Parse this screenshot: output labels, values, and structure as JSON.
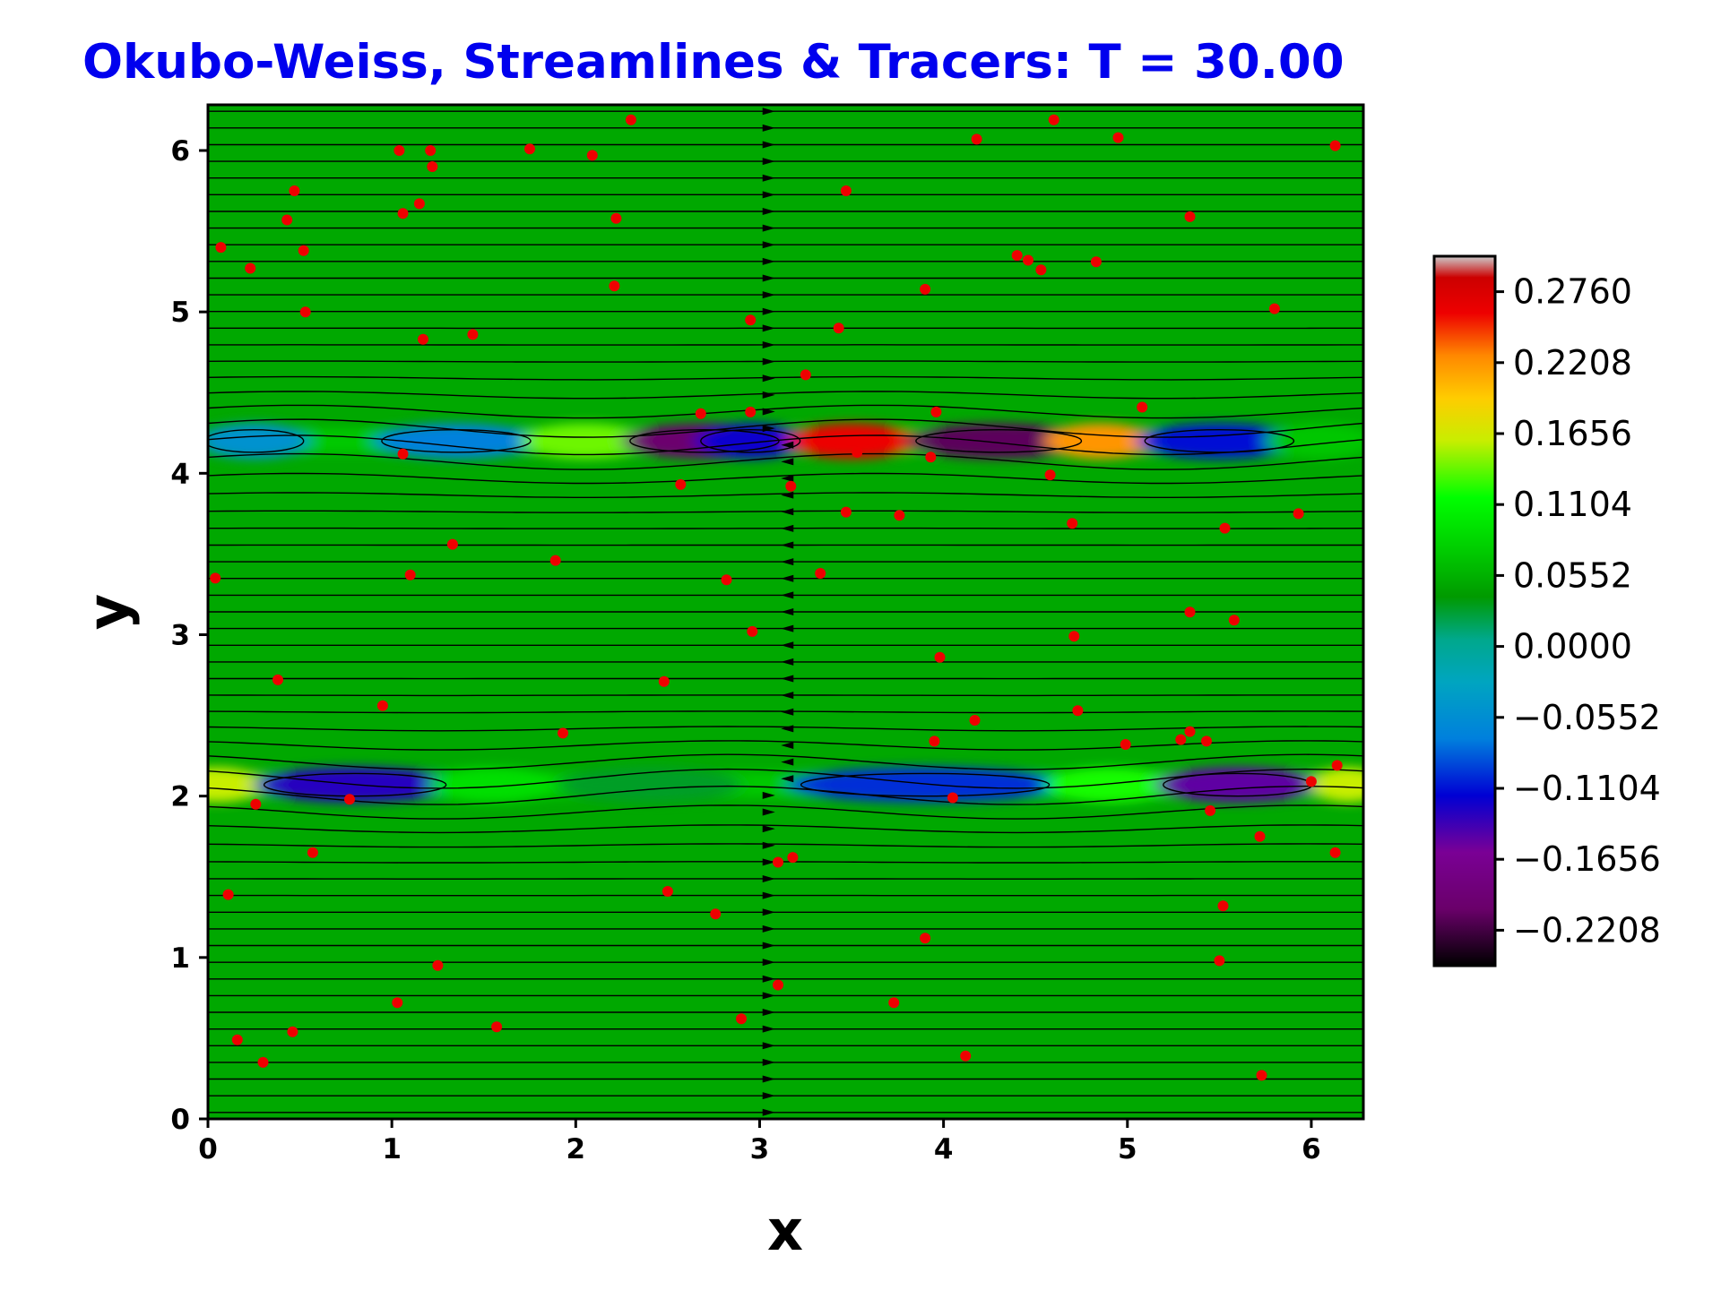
{
  "chart_data": {
    "type": "heatmap",
    "title": "Okubo-Weiss, Streamlines & Tracers: T = 30.00",
    "xlabel": "x",
    "ylabel": "y",
    "xlim": [
      0,
      6.283
    ],
    "ylim": [
      0,
      6.283
    ],
    "x_ticks": [
      "0",
      "1",
      "2",
      "3",
      "4",
      "5",
      "6"
    ],
    "y_ticks": [
      "0",
      "1",
      "2",
      "3",
      "4",
      "5",
      "6"
    ],
    "grid": false,
    "colors": {
      "title": "#0000ee",
      "background_field": "#00a800",
      "tracer": "#ee0000",
      "streamline": "#000000"
    },
    "colorbar": {
      "range": [
        -0.2484,
        0.3036
      ],
      "tick_labels": [
        "0.2760",
        "0.2208",
        "0.1656",
        "0.1104",
        "0.0552",
        "0.0000",
        "−0.0552",
        "−0.1104",
        "−0.1656",
        "−0.2208"
      ],
      "tick_values": [
        0.276,
        0.2208,
        0.1656,
        0.1104,
        0.0552,
        0.0,
        -0.0552,
        -0.1104,
        -0.1656,
        -0.2208
      ],
      "colormap": "nipy_spectral"
    },
    "shear_layers": [
      {
        "y": 4.2,
        "features": [
          {
            "x": 0.25,
            "w": 0.3,
            "value": -0.05
          },
          {
            "x": 1.35,
            "w": 0.45,
            "value": -0.07
          },
          {
            "x": 2.05,
            "w": 0.35,
            "value": 0.14
          },
          {
            "x": 2.7,
            "w": 0.45,
            "value": -0.2
          },
          {
            "x": 2.95,
            "w": 0.3,
            "value": -0.12
          },
          {
            "x": 3.5,
            "w": 0.35,
            "value": 0.26
          },
          {
            "x": 4.3,
            "w": 0.5,
            "value": -0.21
          },
          {
            "x": 4.85,
            "w": 0.3,
            "value": 0.22
          },
          {
            "x": 5.5,
            "w": 0.45,
            "value": -0.11
          },
          {
            "x": 6.05,
            "w": 0.3,
            "value": 0.07
          }
        ]
      },
      {
        "y": 2.07,
        "features": [
          {
            "x": 0.05,
            "w": 0.25,
            "value": 0.16
          },
          {
            "x": 0.8,
            "w": 0.55,
            "value": -0.13
          },
          {
            "x": 1.55,
            "w": 0.35,
            "value": 0.09
          },
          {
            "x": 2.4,
            "w": 0.5,
            "value": 0.03
          },
          {
            "x": 3.9,
            "w": 0.75,
            "value": -0.1
          },
          {
            "x": 4.9,
            "w": 0.35,
            "value": 0.12
          },
          {
            "x": 5.6,
            "w": 0.45,
            "value": -0.15
          },
          {
            "x": 6.2,
            "w": 0.2,
            "value": 0.16
          }
        ]
      }
    ],
    "streamlines": {
      "count_per_unit": 9.5,
      "vortex_layers": [
        4.2,
        2.07
      ]
    },
    "tracers": [
      [
        1.04,
        6.0
      ],
      [
        1.21,
        6.0
      ],
      [
        1.22,
        5.9
      ],
      [
        1.75,
        6.01
      ],
      [
        2.09,
        5.97
      ],
      [
        2.3,
        6.19
      ],
      [
        0.47,
        5.75
      ],
      [
        0.43,
        5.57
      ],
      [
        1.06,
        5.61
      ],
      [
        1.15,
        5.67
      ],
      [
        2.22,
        5.58
      ],
      [
        0.07,
        5.4
      ],
      [
        0.52,
        5.38
      ],
      [
        0.23,
        5.27
      ],
      [
        2.21,
        5.16
      ],
      [
        0.53,
        5.0
      ],
      [
        1.17,
        4.83
      ],
      [
        1.44,
        4.86
      ],
      [
        2.95,
        4.95
      ],
      [
        3.25,
        4.61
      ],
      [
        3.43,
        4.9
      ],
      [
        2.68,
        4.37
      ],
      [
        2.95,
        4.38
      ],
      [
        1.06,
        4.12
      ],
      [
        2.57,
        3.93
      ],
      [
        3.17,
        3.92
      ],
      [
        1.33,
        3.56
      ],
      [
        1.1,
        3.37
      ],
      [
        1.89,
        3.46
      ],
      [
        0.04,
        3.35
      ],
      [
        2.82,
        3.34
      ],
      [
        3.33,
        3.38
      ],
      [
        3.47,
        3.76
      ],
      [
        3.76,
        3.74
      ],
      [
        2.96,
        3.02
      ],
      [
        0.38,
        2.72
      ],
      [
        0.95,
        2.56
      ],
      [
        2.48,
        2.71
      ],
      [
        1.93,
        2.39
      ],
      [
        0.26,
        1.95
      ],
      [
        0.77,
        1.98
      ],
      [
        0.57,
        1.65
      ],
      [
        0.11,
        1.39
      ],
      [
        2.5,
        1.41
      ],
      [
        2.76,
        1.27
      ],
      [
        3.1,
        1.59
      ],
      [
        3.18,
        1.62
      ],
      [
        1.25,
        0.95
      ],
      [
        1.03,
        0.72
      ],
      [
        0.46,
        0.54
      ],
      [
        0.16,
        0.49
      ],
      [
        0.3,
        0.35
      ],
      [
        1.57,
        0.57
      ],
      [
        2.9,
        0.62
      ],
      [
        3.1,
        0.83
      ],
      [
        3.73,
        0.72
      ],
      [
        4.12,
        0.39
      ],
      [
        3.9,
        1.12
      ],
      [
        5.5,
        0.98
      ],
      [
        5.73,
        0.27
      ],
      [
        5.52,
        1.32
      ],
      [
        4.18,
        6.07
      ],
      [
        4.6,
        6.19
      ],
      [
        4.95,
        6.08
      ],
      [
        6.13,
        6.03
      ],
      [
        3.47,
        5.75
      ],
      [
        5.34,
        5.59
      ],
      [
        4.4,
        5.35
      ],
      [
        4.46,
        5.32
      ],
      [
        4.53,
        5.26
      ],
      [
        4.83,
        5.31
      ],
      [
        3.9,
        5.14
      ],
      [
        5.8,
        5.02
      ],
      [
        5.08,
        4.41
      ],
      [
        3.96,
        4.38
      ],
      [
        3.53,
        4.13
      ],
      [
        3.93,
        4.1
      ],
      [
        4.58,
        3.99
      ],
      [
        4.7,
        3.69
      ],
      [
        5.53,
        3.66
      ],
      [
        5.93,
        3.75
      ],
      [
        5.34,
        3.14
      ],
      [
        5.58,
        3.09
      ],
      [
        4.71,
        2.99
      ],
      [
        3.98,
        2.86
      ],
      [
        4.73,
        2.53
      ],
      [
        4.17,
        2.47
      ],
      [
        3.95,
        2.34
      ],
      [
        4.99,
        2.32
      ],
      [
        5.29,
        2.35
      ],
      [
        5.34,
        2.4
      ],
      [
        5.43,
        2.34
      ],
      [
        6.14,
        2.19
      ],
      [
        6.0,
        2.09
      ],
      [
        4.05,
        1.99
      ],
      [
        5.45,
        1.91
      ],
      [
        5.72,
        1.75
      ],
      [
        6.13,
        1.65
      ]
    ]
  }
}
